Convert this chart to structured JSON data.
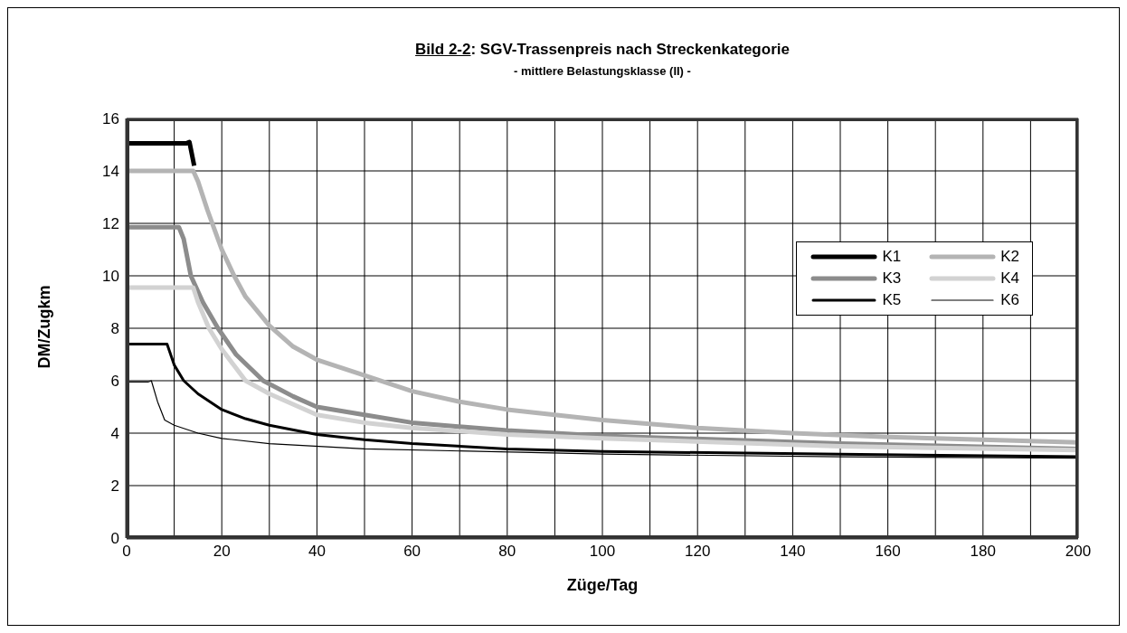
{
  "chart_data": {
    "type": "line",
    "title": "Bild 2-2: SGV-Trassenpreis nach Streckenkategorie",
    "subtitle": "- mittlere Belastungsklasse (II) -",
    "xlabel": "Züge/Tag",
    "ylabel": "DM/Zugkm",
    "series": [
      {
        "name": "K1",
        "color": "#000000",
        "x": [
          0,
          12.5,
          13.2,
          14.2
        ],
        "values": [
          15.05,
          15.05,
          15.1,
          14.2
        ]
      },
      {
        "name": "K2",
        "color": "#b4b4b4",
        "x": [
          0,
          14,
          15,
          17,
          20,
          22.6,
          25,
          30,
          35,
          40,
          50,
          60,
          70,
          80,
          90,
          100,
          120,
          140,
          160,
          180,
          200
        ],
        "values": [
          14,
          14,
          13.6,
          12.5,
          11,
          10,
          9.2,
          8.1,
          7.3,
          6.8,
          6.2,
          5.6,
          5.2,
          4.9,
          4.7,
          4.5,
          4.2,
          4,
          3.85,
          3.75,
          3.65
        ]
      },
      {
        "name": "K3",
        "color": "#8c8c8c",
        "x": [
          0,
          11,
          12,
          13.5,
          16,
          19.2,
          23,
          28.7,
          35,
          40,
          50,
          60,
          80,
          100,
          150,
          200
        ],
        "values": [
          11.85,
          11.85,
          11.4,
          10,
          9,
          8,
          7,
          6,
          5.4,
          5,
          4.7,
          4.4,
          4.1,
          3.9,
          3.6,
          3.4
        ]
      },
      {
        "name": "K4",
        "color": "#d2d2d2",
        "x": [
          0,
          14,
          15,
          17.3,
          20,
          25,
          30,
          40,
          50,
          60,
          80,
          100,
          150,
          200
        ],
        "values": [
          9.55,
          9.55,
          9,
          8,
          7.2,
          6,
          5.5,
          4.7,
          4.4,
          4.2,
          3.95,
          3.8,
          3.5,
          3.35
        ]
      },
      {
        "name": "K5",
        "color": "#000000",
        "x": [
          0,
          8.5,
          10,
          12,
          15,
          20,
          25,
          30,
          40,
          50,
          60,
          80,
          100,
          150,
          200
        ],
        "values": [
          7.4,
          7.4,
          6.6,
          6,
          5.5,
          4.9,
          4.55,
          4.3,
          3.95,
          3.75,
          3.6,
          3.4,
          3.3,
          3.2,
          3.1
        ]
      },
      {
        "name": "K6",
        "color": "#000000",
        "x": [
          0,
          4.5,
          5.2,
          6.5,
          8,
          10,
          15,
          20,
          30,
          50,
          100,
          150,
          200
        ],
        "values": [
          5.95,
          5.95,
          6,
          5.2,
          4.5,
          4.3,
          4,
          3.8,
          3.6,
          3.4,
          3.2,
          3.1,
          3.05
        ]
      }
    ],
    "xlim": [
      0,
      200
    ],
    "ylim": [
      0,
      16
    ],
    "xticks": [
      0,
      {
        "value": 10,
        "label": null
      },
      20,
      {
        "value": 30,
        "label": null
      },
      40,
      {
        "value": 50,
        "label": null
      },
      60,
      {
        "value": 70,
        "label": null
      },
      80,
      {
        "value": 90,
        "label": null
      },
      100,
      {
        "value": 110,
        "label": null
      },
      120,
      {
        "value": 130,
        "label": null
      },
      140,
      {
        "value": 150,
        "label": null
      },
      160,
      {
        "value": 170,
        "label": null
      },
      180,
      {
        "value": 190,
        "label": null
      },
      200
    ],
    "yticks": [
      0,
      2,
      4,
      6,
      8,
      10,
      12,
      14,
      16
    ],
    "grid": true,
    "legend": "right",
    "marker": "none",
    "line_style": "solid"
  }
}
